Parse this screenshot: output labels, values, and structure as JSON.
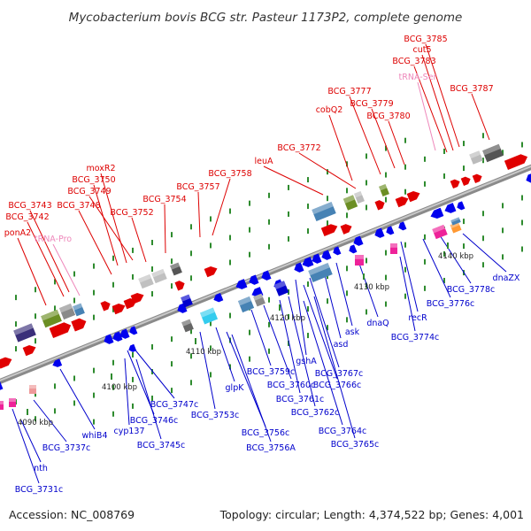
{
  "title": "Mycobacterium bovis BCG str. Pasteur 1173P2, complete genome",
  "accession": "Accession: NC_008769",
  "topology": "Topology: circular; Length: 4,374,522 bp; Genes: 4,001",
  "colors": {
    "forward_label": "#dd0000",
    "reverse_label": "#0000cc",
    "trna_label": "#ee88bb",
    "forward_gene": "#ee0000",
    "reverse_gene": "#0000ee",
    "backbone": "#9a9a9a",
    "tick": "#2e8b2e"
  },
  "scale_ticks": [
    {
      "label": "4090 kbp"
    },
    {
      "label": "4100 kbp"
    },
    {
      "label": "4110 kbp"
    },
    {
      "label": "4120 kbp"
    },
    {
      "label": "4130 kbp"
    },
    {
      "label": "4140 kbp"
    }
  ],
  "forward_labels": [
    {
      "text": "BCG_3785",
      "kind": "gene"
    },
    {
      "text": "cut5",
      "kind": "gene"
    },
    {
      "text": "BCG_3783",
      "kind": "gene"
    },
    {
      "text": "tRNA-Ser",
      "kind": "trna"
    },
    {
      "text": "BCG_3787",
      "kind": "gene"
    },
    {
      "text": "BCG_3777",
      "kind": "gene"
    },
    {
      "text": "BCG_3779",
      "kind": "gene"
    },
    {
      "text": "cobQ2",
      "kind": "gene"
    },
    {
      "text": "BCG_3780",
      "kind": "gene"
    },
    {
      "text": "BCG_3772",
      "kind": "gene"
    },
    {
      "text": "leuA",
      "kind": "gene"
    },
    {
      "text": "moxR2",
      "kind": "gene"
    },
    {
      "text": "BCG_3758",
      "kind": "gene"
    },
    {
      "text": "BCG_3750",
      "kind": "gene"
    },
    {
      "text": "BCG_3757",
      "kind": "gene"
    },
    {
      "text": "BCG_3749",
      "kind": "gene"
    },
    {
      "text": "BCG_3754",
      "kind": "gene"
    },
    {
      "text": "BCG_3743",
      "kind": "gene"
    },
    {
      "text": "BCG_3748",
      "kind": "gene"
    },
    {
      "text": "BCG_3752",
      "kind": "gene"
    },
    {
      "text": "BCG_3742",
      "kind": "gene"
    },
    {
      "text": "ponA2",
      "kind": "gene"
    },
    {
      "text": "tRNA-Pro",
      "kind": "trna"
    }
  ],
  "reverse_labels": [
    {
      "text": "dnaZX"
    },
    {
      "text": "BCG_3778c"
    },
    {
      "text": "BCG_3776c"
    },
    {
      "text": "recR"
    },
    {
      "text": "BCG_3774c"
    },
    {
      "text": "dnaQ"
    },
    {
      "text": "ask"
    },
    {
      "text": "asd"
    },
    {
      "text": "BCG_3767c"
    },
    {
      "text": "gshA"
    },
    {
      "text": "BCG_3766c"
    },
    {
      "text": "BCG_3759c"
    },
    {
      "text": "BCG_3760c"
    },
    {
      "text": "BCG_3761c"
    },
    {
      "text": "BCG_3762c"
    },
    {
      "text": "BCG_3764c"
    },
    {
      "text": "BCG_3765c"
    },
    {
      "text": "glpK"
    },
    {
      "text": "BCG_3753c"
    },
    {
      "text": "BCG_3756c"
    },
    {
      "text": "BCG_3756A"
    },
    {
      "text": "BCG_3747c"
    },
    {
      "text": "BCG_3746c"
    },
    {
      "text": "cyp137"
    },
    {
      "text": "BCG_3745c"
    },
    {
      "text": "whiB4"
    },
    {
      "text": "BCG_3737c"
    },
    {
      "text": "nth"
    },
    {
      "text": "BCG_3731c"
    }
  ]
}
